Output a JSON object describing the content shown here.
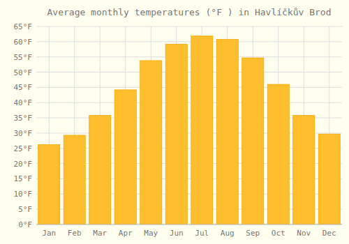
{
  "chart_data": {
    "type": "bar",
    "title": "Average monthly temperatures (°F ) in Havlíčkův Brod",
    "categories": [
      "Jan",
      "Feb",
      "Mar",
      "Apr",
      "May",
      "Jun",
      "Jul",
      "Aug",
      "Sep",
      "Oct",
      "Nov",
      "Dec"
    ],
    "values": [
      26.2,
      29.3,
      35.8,
      44.2,
      53.8,
      59.2,
      61.9,
      60.8,
      54.7,
      46.0,
      35.8,
      29.7
    ],
    "color": "#FFBE2D",
    "ylim": [
      0,
      65
    ],
    "yticks": [
      {
        "value": 0,
        "label": "0°F"
      },
      {
        "value": 5,
        "label": "5°F"
      },
      {
        "value": 10,
        "label": "10°F"
      },
      {
        "value": 15,
        "label": "15°F"
      },
      {
        "value": 20,
        "label": "20°F"
      },
      {
        "value": 25,
        "label": "25°F"
      },
      {
        "value": 30,
        "label": "30°F"
      },
      {
        "value": 35,
        "label": "35°F"
      },
      {
        "value": 40,
        "label": "40°F"
      },
      {
        "value": 45,
        "label": "45°F"
      },
      {
        "value": 50,
        "label": "50°F"
      },
      {
        "value": 55,
        "label": "55°F"
      },
      {
        "value": 60,
        "label": "60°F"
      },
      {
        "value": 65,
        "label": "65°F"
      }
    ],
    "grid": true
  }
}
